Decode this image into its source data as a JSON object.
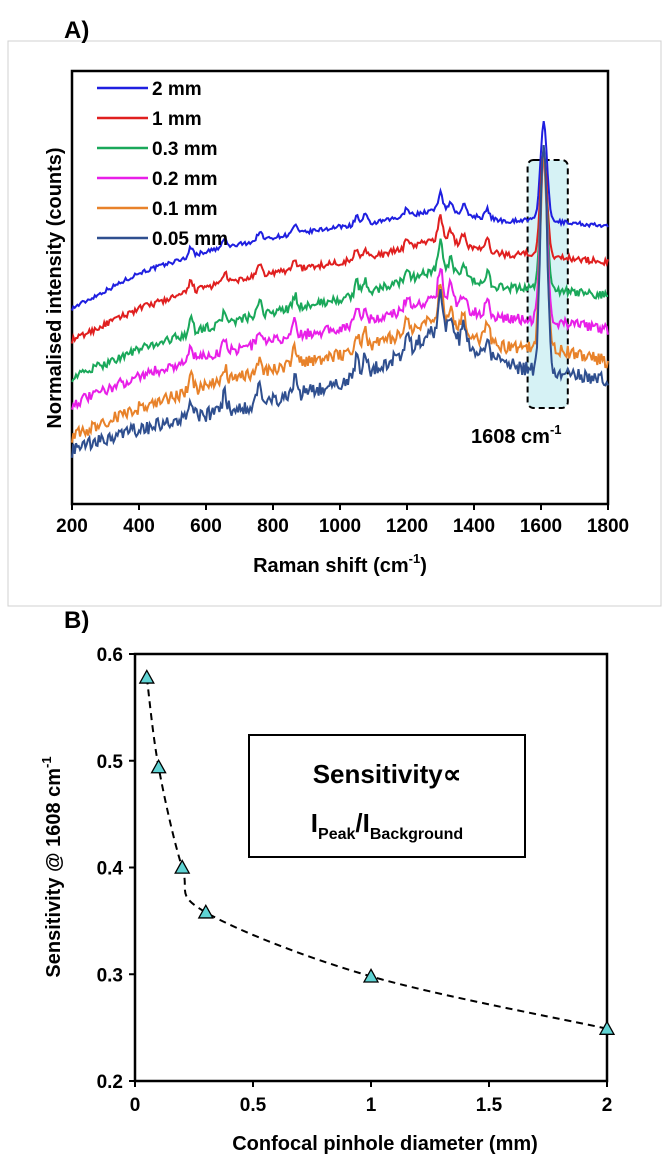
{
  "panel_a": {
    "label": "A)",
    "annotation": "1608 cm",
    "annotation_sup": "-1",
    "chart_data": {
      "type": "line",
      "xlabel": "Raman shift (cm",
      "xlabel_sup": "-1",
      "xlabel_end": ")",
      "ylabel": "Normalised intensity (counts)",
      "xlim": [
        200,
        1800
      ],
      "xticks": [
        200,
        400,
        600,
        800,
        1000,
        1200,
        1400,
        1600,
        1800
      ],
      "highlight_band": [
        1560,
        1680
      ],
      "series": [
        {
          "name": "2 mm",
          "color": "#1f1fe0",
          "offset": 0.9,
          "baseline": [
            [
              200,
              0.1
            ],
            [
              400,
              0.3
            ],
            [
              600,
              0.42
            ],
            [
              800,
              0.5
            ],
            [
              1000,
              0.56
            ],
            [
              1100,
              0.58
            ],
            [
              1200,
              0.62
            ],
            [
              1300,
              0.66
            ],
            [
              1400,
              0.62
            ],
            [
              1500,
              0.59
            ],
            [
              1560,
              0.6
            ],
            [
              1700,
              0.58
            ],
            [
              1800,
              0.56
            ]
          ],
          "peak_height": 0.55
        },
        {
          "name": "1 mm",
          "color": "#e01f1f",
          "offset": 0.72,
          "baseline": [
            [
              200,
              0.1
            ],
            [
              400,
              0.28
            ],
            [
              600,
              0.4
            ],
            [
              800,
              0.48
            ],
            [
              1000,
              0.54
            ],
            [
              1100,
              0.57
            ],
            [
              1200,
              0.62
            ],
            [
              1300,
              0.68
            ],
            [
              1400,
              0.62
            ],
            [
              1500,
              0.58
            ],
            [
              1560,
              0.59
            ],
            [
              1700,
              0.56
            ],
            [
              1800,
              0.54
            ]
          ],
          "peak_height": 0.58
        },
        {
          "name": "0.3 mm",
          "color": "#1aa85a",
          "offset": 0.53,
          "baseline": [
            [
              200,
              0.08
            ],
            [
              400,
              0.24
            ],
            [
              600,
              0.36
            ],
            [
              800,
              0.45
            ],
            [
              1000,
              0.52
            ],
            [
              1100,
              0.57
            ],
            [
              1200,
              0.63
            ],
            [
              1300,
              0.7
            ],
            [
              1400,
              0.62
            ],
            [
              1500,
              0.58
            ],
            [
              1560,
              0.59
            ],
            [
              1700,
              0.56
            ],
            [
              1800,
              0.54
            ]
          ],
          "peak_height": 0.75
        },
        {
          "name": "0.2 mm",
          "color": "#e81fe8",
          "offset": 0.36,
          "baseline": [
            [
              200,
              0.1
            ],
            [
              400,
              0.26
            ],
            [
              600,
              0.37
            ],
            [
              800,
              0.46
            ],
            [
              1000,
              0.53
            ],
            [
              1100,
              0.58
            ],
            [
              1200,
              0.63
            ],
            [
              1300,
              0.72
            ],
            [
              1400,
              0.62
            ],
            [
              1500,
              0.58
            ],
            [
              1560,
              0.58
            ],
            [
              1700,
              0.55
            ],
            [
              1800,
              0.52
            ]
          ],
          "peak_height": 0.95
        },
        {
          "name": "0.1 mm",
          "color": "#e8822a",
          "offset": 0.2,
          "baseline": [
            [
              200,
              0.08
            ],
            [
              400,
              0.24
            ],
            [
              600,
              0.36
            ],
            [
              800,
              0.46
            ],
            [
              1000,
              0.54
            ],
            [
              1100,
              0.6
            ],
            [
              1200,
              0.66
            ],
            [
              1300,
              0.76
            ],
            [
              1400,
              0.64
            ],
            [
              1500,
              0.58
            ],
            [
              1560,
              0.58
            ],
            [
              1700,
              0.55
            ],
            [
              1800,
              0.5
            ]
          ],
          "peak_height": 1.1
        },
        {
          "name": "0.05 mm",
          "color": "#2f4f8f",
          "offset": 0.0,
          "baseline": [
            [
              200,
              0.2
            ],
            [
              400,
              0.32
            ],
            [
              600,
              0.4
            ],
            [
              800,
              0.48
            ],
            [
              1000,
              0.58
            ],
            [
              1100,
              0.66
            ],
            [
              1200,
              0.76
            ],
            [
              1300,
              0.9
            ],
            [
              1400,
              0.76
            ],
            [
              1500,
              0.68
            ],
            [
              1560,
              0.66
            ],
            [
              1700,
              0.62
            ],
            [
              1800,
              0.6
            ]
          ],
          "peak_height": 1.3
        }
      ],
      "peaks": [
        555,
        655,
        760,
        865,
        1050,
        1075,
        1200,
        1300,
        1330,
        1370,
        1440,
        1608
      ]
    }
  },
  "panel_b": {
    "label": "B)",
    "annotation_line1": "Sensitivity∝",
    "annotation_I1": "I",
    "annotation_sub1": "Peak",
    "annotation_slash": "/",
    "annotation_I2": "I",
    "annotation_sub2": "Background",
    "chart_data": {
      "type": "scatter",
      "xlabel": "Confocal pinhole diameter (mm)",
      "ylabel": "Sensitivity @ 1608 cm",
      "ylabel_sup": "-1",
      "xlim": [
        0,
        2
      ],
      "ylim": [
        0.2,
        0.6
      ],
      "xticks": [
        "0",
        "0.5",
        "1",
        "1.5",
        "2"
      ],
      "yticks": [
        "0.2",
        "0.3",
        "0.4",
        "0.5",
        "0.6"
      ],
      "marker_color": "#5fd3d3",
      "x": [
        0.05,
        0.1,
        0.2,
        0.3,
        1.0,
        2.0
      ],
      "y": [
        0.578,
        0.494,
        0.4,
        0.358,
        0.298,
        0.249
      ]
    }
  }
}
